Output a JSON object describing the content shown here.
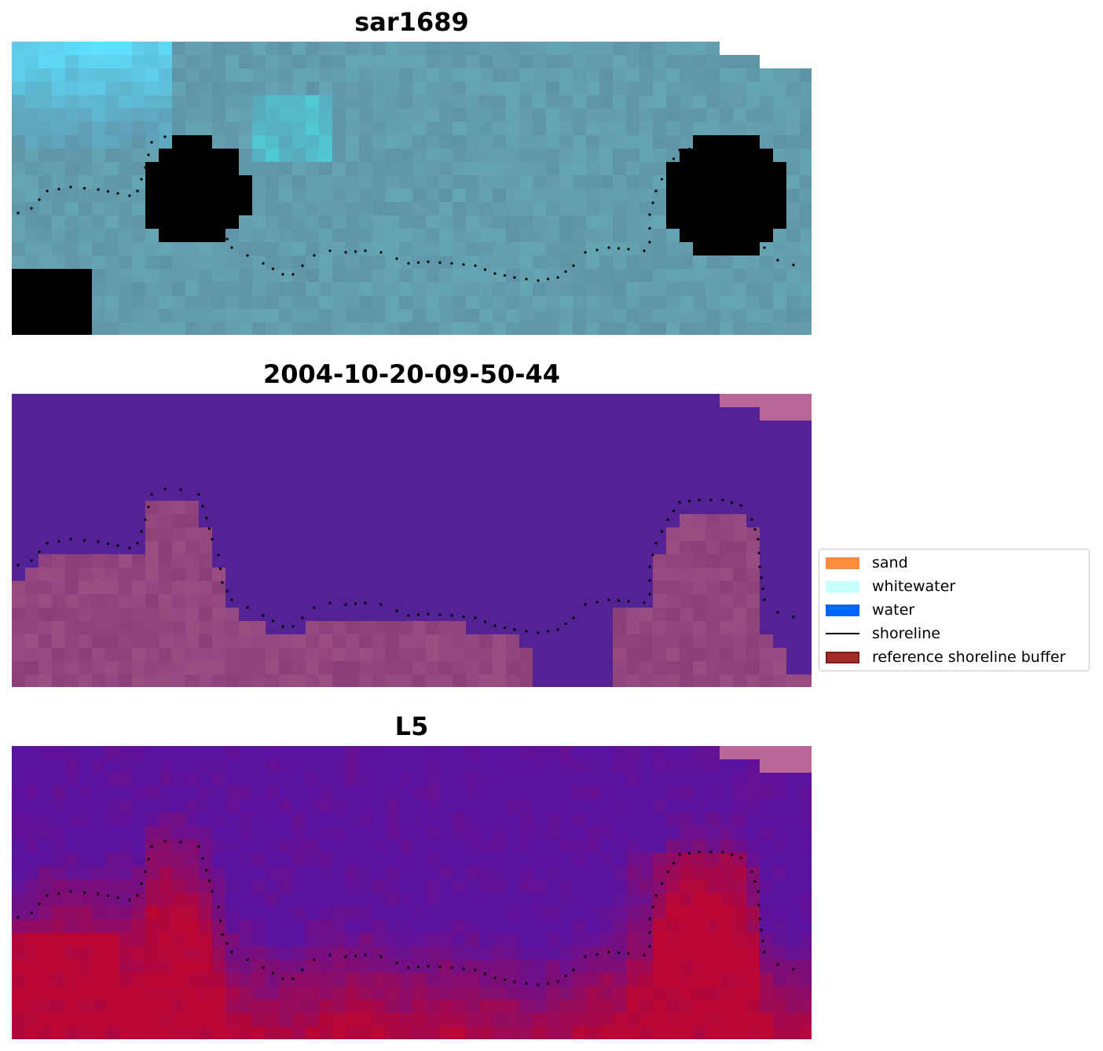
{
  "chart_data": [
    {
      "type": "heatmap",
      "title": "sar1689",
      "render": "rgb-composite",
      "colors": {
        "dominant": "#5f93a8",
        "bright_sand": "#fffde0",
        "cyan_water": "#5ee0ff"
      },
      "shoreline": {
        "style": "dotted",
        "color": "#000000"
      }
    },
    {
      "type": "heatmap",
      "title": "2004-10-20-09-50-44",
      "render": "classified",
      "colors": {
        "water_class": "#532295",
        "land_class": "#8a3f78",
        "masked": "#bb6699"
      },
      "shoreline": {
        "style": "dotted",
        "color": "#000000"
      }
    },
    {
      "type": "heatmap",
      "title": "L5",
      "render": "probability",
      "colors": {
        "low": "#5a12a0",
        "high": "#bb0633"
      },
      "shoreline": {
        "style": "dotted",
        "color": "#000000"
      }
    }
  ],
  "legend": {
    "items": [
      {
        "label": "sand",
        "kind": "patch",
        "color": "#ff8c3a"
      },
      {
        "label": "whitewater",
        "kind": "patch",
        "color": "#c7ffff"
      },
      {
        "label": "water",
        "kind": "patch",
        "color": "#0066ff"
      },
      {
        "label": "shoreline",
        "kind": "line",
        "color": "#000000"
      },
      {
        "label": "reference shoreline buffer",
        "kind": "patch",
        "color": "#a52a2a"
      }
    ]
  }
}
